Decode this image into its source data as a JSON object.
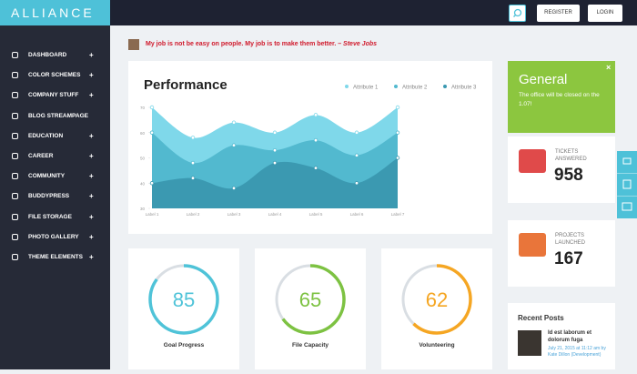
{
  "header": {
    "logo": "ALLIANCE",
    "buttons": [
      "REGISTER",
      "LOGIN"
    ]
  },
  "sidebar": {
    "menu": [
      {
        "label": "DASHBOARD",
        "expandable": true
      },
      {
        "label": "COLOR SCHEMES",
        "expandable": true
      },
      {
        "label": "COMPANY STUFF",
        "expandable": true
      },
      {
        "label": "BLOG STREAMPAGE",
        "expandable": false
      },
      {
        "label": "EDUCATION",
        "expandable": true
      },
      {
        "label": "CAREER",
        "expandable": true
      },
      {
        "label": "COMMUNITY",
        "expandable": true
      },
      {
        "label": "BUDDYPRESS",
        "expandable": true
      },
      {
        "label": "FILE STORAGE",
        "expandable": true
      },
      {
        "label": "PHOTO GALLERY",
        "expandable": true
      },
      {
        "label": "THEME ELEMENTS",
        "expandable": true
      }
    ]
  },
  "quote": {
    "text": "My job is not be easy on people. My job is to make them better.",
    "author": "– Steve Jobs"
  },
  "performance": {
    "chart_data": {
      "type": "area",
      "title": "Performance",
      "categories": [
        "Label 1",
        "Label 2",
        "Label 3",
        "Label 4",
        "Label 5",
        "Label 6",
        "Label 7"
      ],
      "series": [
        {
          "name": "Attribute 1",
          "color": "#7fd8ea",
          "values": [
            70,
            58,
            64,
            60,
            67,
            60,
            70
          ]
        },
        {
          "name": "Attribute 2",
          "color": "#52b9cf",
          "values": [
            60,
            48,
            55,
            53,
            57,
            51,
            60
          ]
        },
        {
          "name": "Attribute 3",
          "color": "#3b99b1",
          "values": [
            40,
            42,
            38,
            48,
            46,
            40,
            50
          ]
        }
      ],
      "ylim": [
        30,
        70
      ],
      "yticks": [
        30,
        40,
        50,
        60,
        70
      ]
    }
  },
  "gauges": [
    {
      "value": 85,
      "label": "Goal Progress",
      "color": "#4fc3d8"
    },
    {
      "value": 65,
      "label": "File Capacity",
      "color": "#7dc242"
    },
    {
      "value": 62,
      "label": "Volunteering",
      "color": "#f5a623"
    }
  ],
  "general": {
    "title": "General",
    "text": "The office will be closed on the 1.07!"
  },
  "stats": [
    {
      "label": "TICKETS ANSWERED",
      "value": 958
    },
    {
      "label": "PROJECTS LAUNCHED",
      "value": 167
    }
  ],
  "recent_posts": {
    "title": "Recent Posts",
    "posts": [
      {
        "title": "Id est laborum et dolorum fuga",
        "meta": "July 21, 2015 at 11:12 am by Kate Dillon (Development)"
      }
    ]
  }
}
